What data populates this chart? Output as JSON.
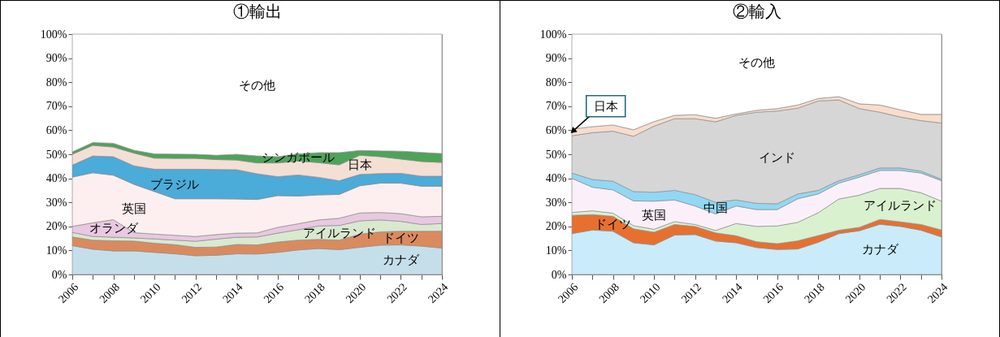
{
  "chart_data": [
    {
      "type": "area",
      "title": "①輸出",
      "stacked": true,
      "legend": false,
      "grid": false,
      "x": [
        2006,
        2007,
        2008,
        2009,
        2010,
        2011,
        2012,
        2013,
        2014,
        2015,
        2016,
        2017,
        2018,
        2019,
        2020,
        2021,
        2022,
        2023,
        2024
      ],
      "xlim": [
        2006,
        2024
      ],
      "xticks": [
        2006,
        {
          "value": 2007,
          "label": null
        },
        2008,
        {
          "value": 2009,
          "label": null
        },
        2010,
        {
          "value": 2011,
          "label": null
        },
        2012,
        {
          "value": 2013,
          "label": null
        },
        2014,
        {
          "value": 2015,
          "label": null
        },
        2016,
        {
          "value": 2017,
          "label": null
        },
        2018,
        {
          "value": 2019,
          "label": null
        },
        2020,
        {
          "value": 2021,
          "label": null
        },
        2022,
        {
          "value": 2023,
          "label": null
        },
        2024
      ],
      "ylim": [
        0,
        100
      ],
      "yticks": [
        {
          "value": 0,
          "label": "0%"
        },
        {
          "value": 10,
          "label": "10%"
        },
        {
          "value": 20,
          "label": "20%"
        },
        {
          "value": 30,
          "label": "30%"
        },
        {
          "value": 40,
          "label": "40%"
        },
        {
          "value": 50,
          "label": "50%"
        },
        {
          "value": 60,
          "label": "60%"
        },
        {
          "value": 70,
          "label": "70%"
        },
        {
          "value": 80,
          "label": "80%"
        },
        {
          "value": 90,
          "label": "90%"
        },
        {
          "value": 100,
          "label": "100%"
        }
      ],
      "series": [
        {
          "name": "カナダ",
          "color": "#c5dfea",
          "values": [
            12.0,
            10.5,
            9.8,
            9.8,
            9.2,
            8.6,
            7.8,
            8.0,
            8.6,
            8.5,
            9.2,
            10.2,
            10.8,
            10.3,
            11.3,
            12.2,
            12.3,
            11.8,
            11.0
          ]
        },
        {
          "name": "ドイツ",
          "color": "#db8a5e",
          "values": [
            3.6,
            3.8,
            4.2,
            4.1,
            3.8,
            3.8,
            3.5,
            3.4,
            3.9,
            3.8,
            4.3,
            4.1,
            3.8,
            4.0,
            5.5,
            5.5,
            5.7,
            6.2,
            7.0
          ]
        },
        {
          "name": "アイルランド",
          "color": "#d8e9cf",
          "values": [
            1.9,
            1.5,
            1.5,
            1.3,
            1.8,
            1.9,
            2.5,
            3.3,
            3.0,
            3.3,
            3.7,
            4.3,
            5.6,
            6.1,
            5.5,
            5.0,
            4.1,
            2.8,
            3.2
          ]
        },
        {
          "name": "オランダ",
          "color": "#e9c8e1",
          "values": [
            2.5,
            5.7,
            7.3,
            2.2,
            2.0,
            2.0,
            2.0,
            1.9,
            1.7,
            1.7,
            2.4,
            2.5,
            2.5,
            3.0,
            3.3,
            3.1,
            3.2,
            3.2,
            3.0
          ]
        },
        {
          "name": "英国",
          "color": "#fdefef",
          "values": [
            20.5,
            20.8,
            18.5,
            20.1,
            17.7,
            15.2,
            15.7,
            14.9,
            14.2,
            13.9,
            13.2,
            11.5,
            10.4,
            9.9,
            11.3,
            12.2,
            12.7,
            12.7,
            12.5
          ]
        },
        {
          "name": "ブラジル",
          "color": "#4babd9",
          "values": [
            5.0,
            7.0,
            7.7,
            7.7,
            9.3,
            12.3,
            12.3,
            12.2,
            12.2,
            10.7,
            7.9,
            8.8,
            7.3,
            5.7,
            4.7,
            4.0,
            4.1,
            4.2,
            4.2
          ]
        },
        {
          "name": "日本",
          "color": "#f4dfd5",
          "values": [
            4.5,
            4.4,
            4.0,
            5.3,
            4.6,
            4.5,
            4.5,
            4.1,
            4.0,
            4.5,
            5.7,
            5.8,
            6.1,
            6.6,
            8.0,
            7.0,
            5.9,
            6.1,
            5.7
          ]
        },
        {
          "name": "シンガポール",
          "color": "#4ea35a",
          "values": [
            1.0,
            1.2,
            1.6,
            1.2,
            1.8,
            1.8,
            1.7,
            1.8,
            2.4,
            2.9,
            2.6,
            3.0,
            4.2,
            5.1,
            2.0,
            2.4,
            3.3,
            3.8,
            3.7
          ]
        },
        {
          "name": "その他",
          "color": "#ffffff",
          "values": [
            49.0,
            45.1,
            45.4,
            48.3,
            49.8,
            49.9,
            50.0,
            50.4,
            50.0,
            50.7,
            51.0,
            49.8,
            49.3,
            49.3,
            48.4,
            48.6,
            48.7,
            49.2,
            49.7
          ]
        }
      ]
    },
    {
      "type": "area",
      "title": "②輸入",
      "stacked": true,
      "legend": false,
      "grid": false,
      "x": [
        2006,
        2007,
        2008,
        2009,
        2010,
        2011,
        2012,
        2013,
        2014,
        2015,
        2016,
        2017,
        2018,
        2019,
        2020,
        2021,
        2022,
        2023,
        2024
      ],
      "xlim": [
        2006,
        2024
      ],
      "xticks": [
        2006,
        {
          "value": 2007,
          "label": null
        },
        2008,
        {
          "value": 2009,
          "label": null
        },
        2010,
        {
          "value": 2011,
          "label": null
        },
        2012,
        {
          "value": 2013,
          "label": null
        },
        2014,
        {
          "value": 2015,
          "label": null
        },
        2016,
        {
          "value": 2017,
          "label": null
        },
        2018,
        {
          "value": 2019,
          "label": null
        },
        2020,
        {
          "value": 2021,
          "label": null
        },
        2022,
        {
          "value": 2023,
          "label": null
        },
        2024
      ],
      "ylim": [
        0,
        100
      ],
      "yticks": [
        {
          "value": 0,
          "label": "0%"
        },
        {
          "value": 10,
          "label": "10%"
        },
        {
          "value": 20,
          "label": "20%"
        },
        {
          "value": 30,
          "label": "30%"
        },
        {
          "value": 40,
          "label": "40%"
        },
        {
          "value": 50,
          "label": "50%"
        },
        {
          "value": 60,
          "label": "60%"
        },
        {
          "value": 70,
          "label": "70%"
        },
        {
          "value": 80,
          "label": "80%"
        },
        {
          "value": 90,
          "label": "90%"
        },
        {
          "value": 100,
          "label": "100%"
        }
      ],
      "series": [
        {
          "name": "カナダ",
          "color": "#c9ebfa",
          "values": [
            17.0,
            18.5,
            18.0,
            13.2,
            12.3,
            16.4,
            16.6,
            13.9,
            13.2,
            11.2,
            10.4,
            10.6,
            13.4,
            17.0,
            18.2,
            20.9,
            20.0,
            18.4,
            15.6
          ]
        },
        {
          "name": "ドイツ",
          "color": "#e8702f",
          "values": [
            7.6,
            6.4,
            6.2,
            5.8,
            5.3,
            4.4,
            3.4,
            3.4,
            2.9,
            2.4,
            2.4,
            3.4,
            2.8,
            1.4,
            1.4,
            2.0,
            1.9,
            2.4,
            2.9
          ]
        },
        {
          "name": "アイルランド",
          "color": "#d9f1cf",
          "values": [
            1.2,
            1.6,
            1.3,
            1.3,
            1.2,
            1.2,
            0.8,
            1.0,
            5.1,
            6.4,
            7.4,
            7.7,
            9.5,
            13.0,
            13.4,
            12.9,
            13.9,
            13.2,
            12.0
          ]
        },
        {
          "name": "英国",
          "color": "#fbf0fa",
          "values": [
            14.2,
            9.8,
            9.7,
            10.3,
            11.7,
            9.0,
            7.7,
            6.9,
            7.3,
            7.0,
            6.8,
            9.8,
            7.8,
            6.6,
            7.5,
            7.5,
            7.5,
            8.2,
            8.5
          ]
        },
        {
          "name": "中国",
          "color": "#91d8f5",
          "values": [
            2.2,
            3.2,
            3.6,
            3.9,
            3.7,
            4.0,
            4.7,
            4.8,
            2.5,
            2.6,
            2.4,
            2.0,
            1.5,
            1.0,
            1.0,
            1.0,
            1.0,
            0.8,
            0.6
          ]
        },
        {
          "name": "インド",
          "color": "#d6d6d6",
          "values": [
            15.5,
            19.5,
            20.8,
            23.0,
            27.5,
            29.8,
            31.6,
            33.5,
            35.2,
            37.9,
            38.6,
            35.7,
            37.2,
            33.6,
            27.5,
            23.2,
            21.2,
            21.0,
            23.4
          ]
        },
        {
          "name": "日本",
          "color": "#fadccb",
          "values": [
            2.8,
            2.5,
            2.6,
            2.7,
            1.9,
            1.4,
            1.7,
            1.5,
            0.6,
            0.8,
            1.0,
            1.3,
            1.0,
            1.4,
            2.0,
            3.0,
            3.0,
            2.6,
            3.6
          ]
        },
        {
          "name": "その他",
          "color": "#ffffff",
          "values": [
            39.5,
            38.5,
            37.8,
            39.8,
            36.4,
            33.8,
            33.5,
            35.0,
            33.2,
            31.7,
            31.0,
            29.5,
            26.8,
            26.0,
            29.0,
            29.5,
            31.5,
            33.4,
            33.4
          ]
        }
      ]
    }
  ]
}
